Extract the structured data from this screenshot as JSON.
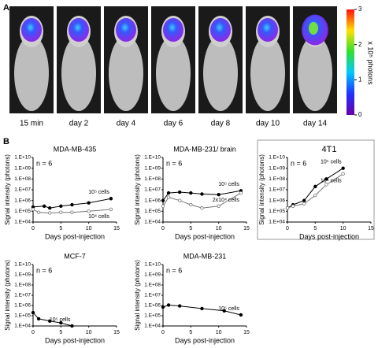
{
  "panel_a": {
    "label": "A",
    "images": [
      "15 min",
      "day 2",
      "day 4",
      "day 6",
      "day 8",
      "day 10",
      "day 14"
    ],
    "colorbar": {
      "label": "x 10⁵ photons",
      "lim": [
        0,
        3
      ],
      "ticks": [
        0,
        1,
        2,
        3
      ]
    }
  },
  "panel_b": {
    "label": "B"
  },
  "chart_data": [
    {
      "type": "line",
      "title": "MDA-MB-435",
      "note": "n = 6",
      "xlabel": "Days post-injection",
      "ylabel": "Signal intensity (photons)",
      "log_y": true,
      "frame": false,
      "xlim": [
        0,
        15
      ],
      "xticks": [
        0,
        5,
        10,
        15
      ],
      "ylim": [
        10000,
        10000000000
      ],
      "yticks": [
        {
          "value": 10000,
          "label": "1.E+04"
        },
        {
          "value": 100000,
          "label": "1.E+05"
        },
        {
          "value": 1000000,
          "label": "1.E+06"
        },
        {
          "value": 10000000,
          "label": "1.E+07"
        },
        {
          "value": 100000000,
          "label": "1.E+08"
        },
        {
          "value": 1000000000,
          "label": "1.E+09"
        },
        {
          "value": 10000000000,
          "label": "1.E+10"
        }
      ],
      "series": [
        {
          "name": "10⁵ cells",
          "color": "#000000",
          "x": [
            0,
            2,
            3,
            5,
            7,
            10,
            14
          ],
          "values": [
            250000,
            300000,
            200000,
            300000,
            400000,
            600000,
            1500000
          ]
        },
        {
          "name": "10⁴ cells",
          "color": "#777777",
          "x": [
            0,
            1,
            3,
            5,
            7,
            10,
            14
          ],
          "values": [
            150000,
            80000,
            70000,
            80000,
            80000,
            100000,
            150000
          ]
        }
      ]
    },
    {
      "type": "line",
      "title": "MDA-MB-231/ brain",
      "note": "n = 6",
      "xlabel": "Days post-injection",
      "ylabel": "Signal intensity (photons)",
      "log_y": true,
      "frame": false,
      "xlim": [
        0,
        15
      ],
      "xticks": [
        0,
        5,
        10,
        15
      ],
      "ylim": [
        10000,
        10000000000
      ],
      "yticks": [
        {
          "value": 10000,
          "label": "1.E+04"
        },
        {
          "value": 100000,
          "label": "1.E+05"
        },
        {
          "value": 1000000,
          "label": "1.E+06"
        },
        {
          "value": 10000000,
          "label": "1.E+07"
        },
        {
          "value": 100000000,
          "label": "1.E+08"
        },
        {
          "value": 1000000000,
          "label": "1.E+09"
        },
        {
          "value": 10000000000,
          "label": "1.E+10"
        }
      ],
      "series": [
        {
          "name": "10⁵ cells",
          "color": "#000000",
          "x": [
            0,
            1,
            3,
            5,
            7,
            10,
            14
          ],
          "values": [
            1000000,
            5000000,
            6000000,
            5000000,
            4000000,
            3500000,
            8000000
          ]
        },
        {
          "name": "2x10⁴ cells",
          "color": "#777777",
          "x": [
            0,
            1,
            3,
            5,
            7,
            10,
            14
          ],
          "values": [
            300000,
            2000000,
            1000000,
            400000,
            200000,
            300000,
            5000000
          ]
        }
      ]
    },
    {
      "type": "line",
      "title": "4T1",
      "note": "n = 6",
      "xlabel": "Days post-injection",
      "ylabel": "Signal intensity (photons)",
      "log_y": true,
      "frame": true,
      "xlim": [
        0,
        15
      ],
      "xticks": [
        0,
        5,
        10,
        15
      ],
      "ylim": [
        10000,
        10000000000
      ],
      "yticks": [
        {
          "value": 10000,
          "label": "1.E+04"
        },
        {
          "value": 100000,
          "label": "1.E+05"
        },
        {
          "value": 1000000,
          "label": "1.E+06"
        },
        {
          "value": 10000000,
          "label": "1.E+07"
        },
        {
          "value": 100000000,
          "label": "1.E+08"
        },
        {
          "value": 1000000000,
          "label": "1.E+09"
        },
        {
          "value": 10000000000,
          "label": "1.E+10"
        }
      ],
      "series": [
        {
          "name": "10⁵ cells",
          "color": "#000000",
          "x": [
            0,
            1,
            3,
            5,
            7,
            10
          ],
          "values": [
            200000,
            400000,
            1000000,
            20000000,
            100000000,
            1000000000
          ]
        },
        {
          "name": "10⁴ cells",
          "color": "#777777",
          "x": [
            0,
            1,
            3,
            5,
            7,
            10
          ],
          "values": [
            200000,
            300000,
            500000,
            3000000,
            30000000,
            300000000
          ]
        }
      ]
    },
    {
      "type": "line",
      "title": "MCF-7",
      "note": "n = 6",
      "xlabel": "Days post-injection",
      "ylabel": "Signal intensity (photons)",
      "log_y": true,
      "frame": false,
      "xlim": [
        0,
        15
      ],
      "xticks": [
        0,
        5,
        10,
        15
      ],
      "ylim": [
        10000,
        10000000000
      ],
      "yticks": [
        {
          "value": 10000,
          "label": "1.E+04"
        },
        {
          "value": 100000,
          "label": "1.E+05"
        },
        {
          "value": 1000000,
          "label": "1.E+06"
        },
        {
          "value": 10000000,
          "label": "1.E+07"
        },
        {
          "value": 100000000,
          "label": "1.E+08"
        },
        {
          "value": 1000000000,
          "label": "1.E+09"
        },
        {
          "value": 10000000000,
          "label": "1.E+10"
        }
      ],
      "series": [
        {
          "name": "10⁵ cells",
          "color": "#000000",
          "x": [
            0,
            1,
            3,
            5,
            7
          ],
          "values": [
            200000,
            50000,
            30000,
            20000,
            10000
          ]
        }
      ]
    },
    {
      "type": "line",
      "title": "MDA-MB-231",
      "note": "n = 6",
      "xlabel": "Days post-injection",
      "ylabel": "Signal intensity (photons)",
      "log_y": true,
      "frame": false,
      "xlim": [
        0,
        15
      ],
      "xticks": [
        0,
        5,
        10,
        15
      ],
      "ylim": [
        10000,
        10000000000
      ],
      "yticks": [
        {
          "value": 10000,
          "label": "1.E+04"
        },
        {
          "value": 100000,
          "label": "1.E+05"
        },
        {
          "value": 1000000,
          "label": "1.E+06"
        },
        {
          "value": 10000000,
          "label": "1.E+07"
        },
        {
          "value": 100000000,
          "label": "1.E+08"
        },
        {
          "value": 1000000000,
          "label": "1.E+09"
        },
        {
          "value": 10000000000,
          "label": "1.E+10"
        }
      ],
      "series": [
        {
          "name": "10⁵ cells",
          "color": "#000000",
          "x": [
            0,
            1,
            3,
            7,
            11,
            14
          ],
          "values": [
            700000,
            1100000,
            900000,
            500000,
            300000,
            120000
          ]
        }
      ]
    }
  ]
}
